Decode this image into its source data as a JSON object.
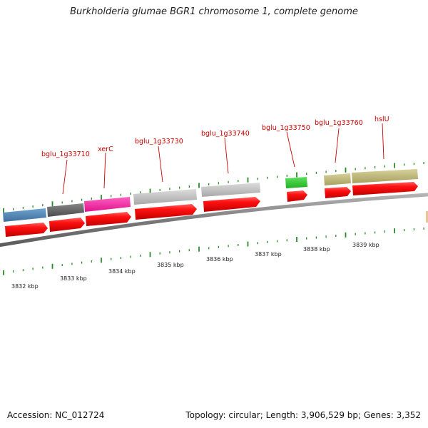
{
  "title": "Burkholderia glumae BGR1 chromosome 1, complete genome",
  "footer": {
    "accession": "Accession: NC_012724",
    "summary": "Topology: circular; Length: 3,906,529 bp; Genes: 3,352"
  },
  "colors": {
    "backbone": "#8a8a8a",
    "cds_arrow": "#ee1111",
    "tick": "#2a8a2a",
    "label": "#cc0000"
  },
  "gene_labels": [
    {
      "id": "l1",
      "text": "bglu_1g33710"
    },
    {
      "id": "l2",
      "text": "xerC"
    },
    {
      "id": "l3",
      "text": "bglu_1g33730"
    },
    {
      "id": "l4",
      "text": "bglu_1g33740"
    },
    {
      "id": "l5",
      "text": "bglu_1g33750"
    },
    {
      "id": "l6",
      "text": "bglu_1g33760"
    },
    {
      "id": "l7",
      "text": "hslU"
    }
  ],
  "kbp_labels": [
    "3832 kbp",
    "3833 kbp",
    "3834 kbp",
    "3835 kbp",
    "3836 kbp",
    "3837 kbp",
    "3838 kbp",
    "3839 kbp"
  ]
}
